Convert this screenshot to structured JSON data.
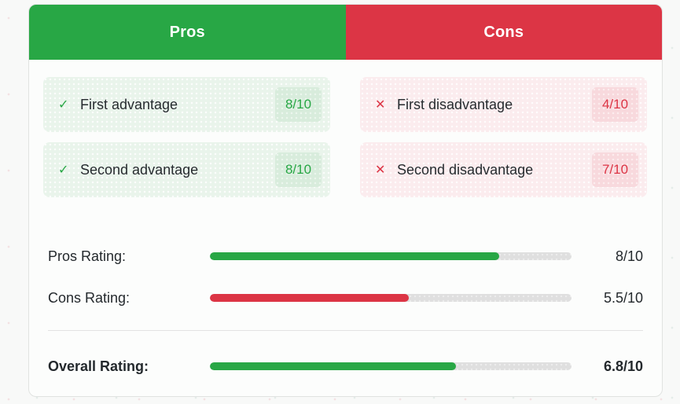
{
  "pros": {
    "title": "Pros",
    "accent_color": "#28a745",
    "item_bg_color": "#e9f4eb",
    "badge_bg_color": "#d8ecdc",
    "icon": "check-icon",
    "icon_glyph": "✓",
    "items": [
      {
        "label": "First advantage",
        "score": "8/10"
      },
      {
        "label": "Second advantage",
        "score": "8/10"
      }
    ]
  },
  "cons": {
    "title": "Cons",
    "accent_color": "#dc3545",
    "item_bg_color": "#fbecee",
    "badge_bg_color": "#f8d9dd",
    "icon": "cross-icon",
    "icon_glyph": "✕",
    "items": [
      {
        "label": "First disadvantage",
        "score": "4/10"
      },
      {
        "label": "Second disadvantage",
        "score": "7/10"
      }
    ]
  },
  "ratings": [
    {
      "label": "Pros Rating:",
      "value": "8/10",
      "percent": 80,
      "fill": "80%",
      "bar_color": "#28a745",
      "bold": false
    },
    {
      "label": "Cons Rating:",
      "value": "5.5/10",
      "percent": 55,
      "fill": "55%",
      "bar_color": "#dc3545",
      "bold": false
    },
    {
      "label": "Overall Rating:",
      "value": "6.8/10",
      "percent": 68,
      "fill": "68%",
      "bar_color": "#28a745",
      "bold": true
    }
  ],
  "colors": {
    "track": "#dfdfdf",
    "card_background": "#fcfdfc",
    "page_background": "#f8f9f8",
    "text": "#24292d"
  }
}
